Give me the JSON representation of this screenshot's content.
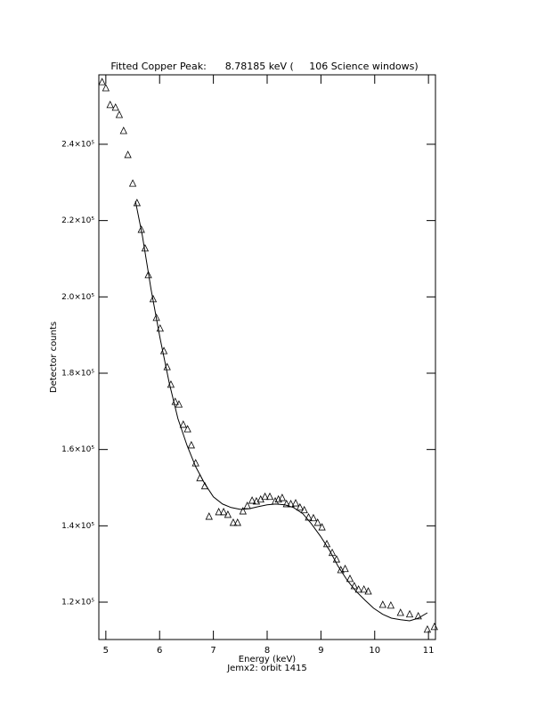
{
  "chart_data": {
    "type": "scatter",
    "title": "Fitted Copper Peak:      8.78185 keV (     106 Science windows)",
    "x_label": "Energy (keV)",
    "subtitle": "Jemx2: orbit 1415",
    "y_label": "Detector counts",
    "color": "#000000",
    "xlim": [
      4.87,
      11.13
    ],
    "ylim": [
      110200,
      258200
    ],
    "xticks": [
      5,
      6,
      7,
      8,
      9,
      10,
      11
    ],
    "yticks": [
      {
        "value": 120000,
        "label": "1.2×10⁵"
      },
      {
        "value": 140000,
        "label": "1.4×10⁵"
      },
      {
        "value": 160000,
        "label": "1.6×10⁵"
      },
      {
        "value": 180000,
        "label": "1.8×10⁵"
      },
      {
        "value": 200000,
        "label": "2.0×10⁵"
      },
      {
        "value": 220000,
        "label": "2.2×10⁵"
      },
      {
        "value": 240000,
        "label": "2.4×10⁵"
      }
    ],
    "points": {
      "x": [
        4.93,
        5.0,
        5.08,
        5.18,
        5.25,
        5.33,
        5.41,
        5.5,
        5.58,
        5.66,
        5.73,
        5.79,
        5.88,
        5.94,
        6.01,
        6.08,
        6.14,
        6.21,
        6.29,
        6.36,
        6.44,
        6.52,
        6.59,
        6.67,
        6.75,
        6.84,
        6.92,
        7.1,
        7.19,
        7.27,
        7.37,
        7.45,
        7.55,
        7.63,
        7.72,
        7.8,
        7.88,
        7.96,
        8.05,
        8.15,
        8.21,
        8.28,
        8.36,
        8.44,
        8.53,
        8.61,
        8.69,
        8.77,
        8.86,
        8.94,
        9.02,
        9.11,
        9.21,
        9.29,
        9.37,
        9.45,
        9.54,
        9.62,
        9.7,
        9.8,
        9.88,
        10.15,
        10.3,
        10.48,
        10.65,
        10.81,
        10.98,
        11.11
      ],
      "y": [
        256300,
        254700,
        250300,
        249600,
        247700,
        243500,
        237200,
        229700,
        224600,
        217600,
        212700,
        205700,
        199400,
        194500,
        191700,
        185800,
        181600,
        177000,
        172500,
        171800,
        166500,
        165300,
        161100,
        156400,
        152500,
        150400,
        142400,
        143600,
        143600,
        142900,
        140800,
        140800,
        143800,
        145200,
        146600,
        146400,
        146900,
        147600,
        147600,
        146400,
        146900,
        147300,
        145700,
        145700,
        145900,
        144800,
        144100,
        142200,
        142000,
        140800,
        139600,
        135200,
        132900,
        131200,
        128400,
        128700,
        126100,
        124200,
        123300,
        123300,
        122800,
        119300,
        119100,
        117200,
        116800,
        116300,
        112800,
        113500
      ]
    },
    "fit": {
      "x": [
        5.55,
        5.68,
        5.84,
        6.01,
        6.18,
        6.34,
        6.51,
        6.67,
        6.84,
        7.0,
        7.17,
        7.33,
        7.5,
        7.67,
        7.83,
        8.0,
        8.16,
        8.33,
        8.49,
        8.66,
        8.82,
        8.99,
        9.16,
        9.32,
        9.49,
        9.65,
        9.82,
        9.98,
        10.15,
        10.31,
        10.48,
        10.65,
        10.81,
        10.98
      ],
      "y": [
        225100,
        216000,
        202000,
        189100,
        177400,
        168100,
        161100,
        155500,
        151000,
        147600,
        145700,
        144800,
        144300,
        144500,
        145000,
        145500,
        145700,
        145500,
        144800,
        143200,
        140600,
        137300,
        133600,
        129400,
        125700,
        122900,
        120500,
        118400,
        116800,
        115800,
        115400,
        115100,
        115800,
        117200
      ]
    }
  }
}
